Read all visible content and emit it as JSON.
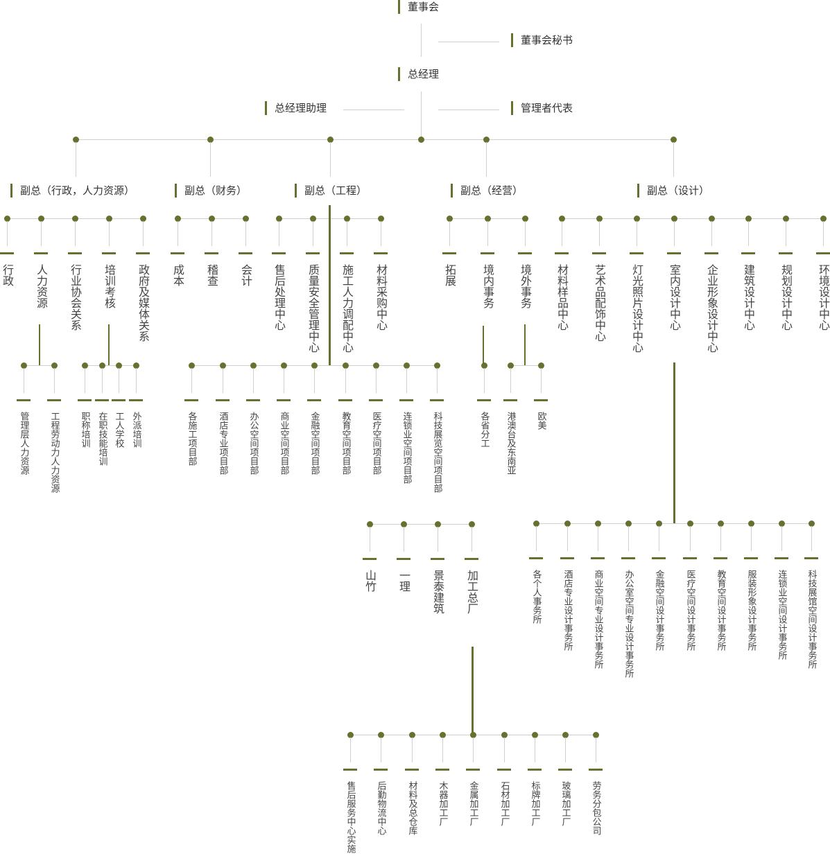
{
  "colors": {
    "accent": "#66702f",
    "connector": "#cfcfcf",
    "text": "#333333"
  },
  "top": {
    "board": "董事会",
    "board_secretary": "董事会秘书",
    "general_manager": "总经理",
    "gm_assistant": "总经理助理",
    "management_representative": "管理者代表"
  },
  "vice_presidents": [
    "副总（行政，人力资源）",
    "副总（财务）",
    "副总（工程）",
    "副总（经营）",
    "副总（设计）"
  ],
  "level2": [
    "行政",
    "人力资源",
    "行业协会关系",
    "培训考核",
    "政府及媒体关系",
    "成本",
    "稽查",
    "会计",
    "售后处理中心",
    "质量安全管理中心",
    "施工人力调配中心",
    "材料采购中心",
    "拓展",
    "境内事务",
    "境外事务",
    "材料样品中心",
    "艺术品配饰中心",
    "灯光照片设计中心",
    "室内设计中心",
    "企业形象设计中心",
    "建筑设计中心",
    "规划设计中心",
    "环境设计中心"
  ],
  "level3": [
    "管理层人力资源",
    "工程劳动力人力资源",
    "职称培训",
    "在职技能培训",
    "工人学校",
    "外派培训",
    "各施工项目部",
    "酒店专业项目部",
    "办公空间项目部",
    "商业空间项目部",
    "金融空间项目部",
    "教育空间项目部",
    "医疗空间项目部",
    "连锁业空间项目部",
    "科技展览空间项目部",
    "各省分工",
    "港澳台及东南亚",
    "欧美"
  ],
  "level4_engineering": [
    "山竹",
    "一理",
    "景泰建筑",
    "加工总厂"
  ],
  "level4_design": [
    "各个人事务所",
    "酒店专业设计事务所",
    "商业空间专业设计事务所",
    "办公室空间专业设计事务所",
    "金融空间设计事务所",
    "医疗空间设计事务所",
    "教育空间设计事务所",
    "服装形象设计事务所",
    "连锁业空间设计事务所",
    "科技展馆空间设计事务所"
  ],
  "level5": [
    "售后服务中心实施",
    "后勤物流中心",
    "材料及总仓库",
    "木器加工厂",
    "金属加工厂",
    "石材加工厂",
    "标牌加工厂",
    "玻璃加工厂",
    "劳务分包公司"
  ]
}
